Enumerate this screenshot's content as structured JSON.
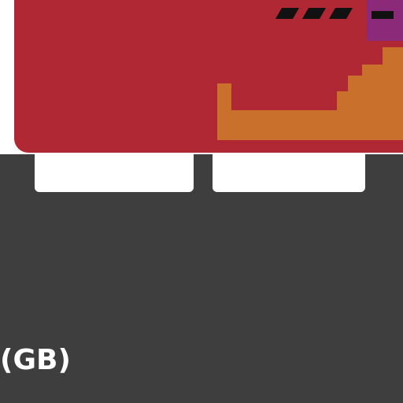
{
  "region_label": "(GB)",
  "colors": {
    "background": "#3e3e3e",
    "panel_red": "#b02834",
    "accent_orange": "#c8702c",
    "accent_purple": "#8a2a78",
    "stripe_black": "#111111",
    "drawer_white": "#ffffff"
  }
}
